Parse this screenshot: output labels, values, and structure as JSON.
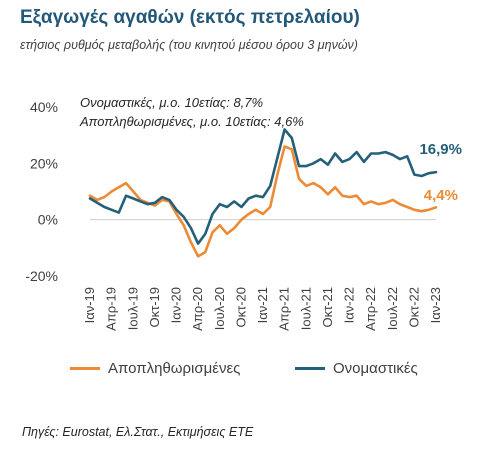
{
  "header": {
    "title": "Εξαγωγές αγαθών (εκτός πετρελαίου)",
    "subtitle": "ετήσιος ρυθμός μεταβολής (του κινητού μέσου όρου 3 μηνών)"
  },
  "source": "Πηγές: Eurostat, Ελ.Στατ., Εκτιμήσεις ΕΤΕ",
  "colors": {
    "nominal": "#24607a",
    "real": "#ee8a33",
    "axis": "#d0d0d0",
    "text": "#404040"
  },
  "chart_data": {
    "type": "line",
    "ylim": [
      -20,
      40
    ],
    "yticks": [
      -20,
      0,
      20,
      40
    ],
    "ytick_labels": [
      "-20%",
      "0%",
      "20%",
      "40%"
    ],
    "xlim": [
      "2019-01",
      "2023-01"
    ],
    "xtick_labels": [
      "Ιαν-19",
      "Απρ-19",
      "Ιουλ-19",
      "Οκτ-19",
      "Ιαν-20",
      "Απρ-20",
      "Ιουλ-20",
      "Οκτ-20",
      "Ιαν-21",
      "Απρ-21",
      "Ιουλ-21",
      "Οκτ-21",
      "Ιαν-22",
      "Απρ-22",
      "Ιουλ-22",
      "Οκτ-22",
      "Ιαν-23"
    ],
    "annotations": [
      "Ονομαστικές, μ.ο. 10ετίας: 8,7%",
      "Αποπληθωρισμένες, μ.ο. 10ετίας: 4,6%"
    ],
    "series": [
      {
        "name": "Ονομαστικές",
        "end_label": "16,9%",
        "points": [
          [
            "2019-01",
            7.5
          ],
          [
            "2019-02",
            6.0
          ],
          [
            "2019-03",
            4.5
          ],
          [
            "2019-04",
            3.5
          ],
          [
            "2019-05",
            2.5
          ],
          [
            "2019-06",
            8.5
          ],
          [
            "2019-07",
            7.5
          ],
          [
            "2019-08",
            6.5
          ],
          [
            "2019-09",
            5.5
          ],
          [
            "2019-10",
            6.0
          ],
          [
            "2019-11",
            8.0
          ],
          [
            "2019-12",
            7.0
          ],
          [
            "2020-01",
            3.5
          ],
          [
            "2020-02",
            1.0
          ],
          [
            "2020-03",
            -3.0
          ],
          [
            "2020-04",
            -8.5
          ],
          [
            "2020-05",
            -5.0
          ],
          [
            "2020-06",
            2.0
          ],
          [
            "2020-07",
            5.5
          ],
          [
            "2020-08",
            4.5
          ],
          [
            "2020-09",
            6.5
          ],
          [
            "2020-10",
            4.5
          ],
          [
            "2020-11",
            7.5
          ],
          [
            "2020-12",
            8.5
          ],
          [
            "2021-01",
            8.0
          ],
          [
            "2021-02",
            12.0
          ],
          [
            "2021-03",
            22.0
          ],
          [
            "2021-04",
            32.0
          ],
          [
            "2021-05",
            29.0
          ],
          [
            "2021-06",
            19.0
          ],
          [
            "2021-07",
            19.0
          ],
          [
            "2021-08",
            20.0
          ],
          [
            "2021-09",
            21.5
          ],
          [
            "2021-10",
            19.5
          ],
          [
            "2021-11",
            23.5
          ],
          [
            "2021-12",
            20.5
          ],
          [
            "2022-01",
            21.5
          ],
          [
            "2022-02",
            24.0
          ],
          [
            "2022-03",
            20.5
          ],
          [
            "2022-04",
            23.5
          ],
          [
            "2022-05",
            23.5
          ],
          [
            "2022-06",
            24.0
          ],
          [
            "2022-07",
            23.0
          ],
          [
            "2022-08",
            21.5
          ],
          [
            "2022-09",
            22.5
          ],
          [
            "2022-10",
            16.0
          ],
          [
            "2022-11",
            15.5
          ],
          [
            "2022-12",
            16.5
          ],
          [
            "2023-01",
            16.9
          ]
        ]
      },
      {
        "name": "Αποπληθωρισμένες",
        "end_label": "4,4%",
        "points": [
          [
            "2019-01",
            8.5
          ],
          [
            "2019-02",
            7.0
          ],
          [
            "2019-03",
            8.0
          ],
          [
            "2019-04",
            10.0
          ],
          [
            "2019-05",
            11.5
          ],
          [
            "2019-06",
            13.0
          ],
          [
            "2019-07",
            10.0
          ],
          [
            "2019-08",
            7.0
          ],
          [
            "2019-09",
            6.0
          ],
          [
            "2019-10",
            5.0
          ],
          [
            "2019-11",
            7.0
          ],
          [
            "2019-12",
            6.5
          ],
          [
            "2020-01",
            2.0
          ],
          [
            "2020-02",
            -2.0
          ],
          [
            "2020-03",
            -8.0
          ],
          [
            "2020-04",
            -13.0
          ],
          [
            "2020-05",
            -11.5
          ],
          [
            "2020-06",
            -4.5
          ],
          [
            "2020-07",
            -2.0
          ],
          [
            "2020-08",
            -5.0
          ],
          [
            "2020-09",
            -3.0
          ],
          [
            "2020-10",
            0.0
          ],
          [
            "2020-11",
            2.0
          ],
          [
            "2020-12",
            3.5
          ],
          [
            "2021-01",
            2.0
          ],
          [
            "2021-02",
            4.5
          ],
          [
            "2021-03",
            16.0
          ],
          [
            "2021-04",
            26.0
          ],
          [
            "2021-05",
            25.0
          ],
          [
            "2021-06",
            14.5
          ],
          [
            "2021-07",
            12.0
          ],
          [
            "2021-08",
            13.0
          ],
          [
            "2021-09",
            11.5
          ],
          [
            "2021-10",
            9.0
          ],
          [
            "2021-11",
            11.5
          ],
          [
            "2021-12",
            8.5
          ],
          [
            "2022-01",
            8.0
          ],
          [
            "2022-02",
            8.5
          ],
          [
            "2022-03",
            5.5
          ],
          [
            "2022-04",
            6.5
          ],
          [
            "2022-05",
            5.5
          ],
          [
            "2022-06",
            6.0
          ],
          [
            "2022-07",
            7.0
          ],
          [
            "2022-08",
            5.5
          ],
          [
            "2022-09",
            4.5
          ],
          [
            "2022-10",
            3.5
          ],
          [
            "2022-11",
            3.0
          ],
          [
            "2022-12",
            3.5
          ],
          [
            "2023-01",
            4.4
          ]
        ]
      }
    ],
    "legend": {
      "placement": "bottom",
      "entries": [
        {
          "label": "Αποπληθωρισμένες",
          "series": "Αποπληθωρισμένες"
        },
        {
          "label": "Ονομαστικές",
          "series": "Ονομαστικές"
        }
      ]
    }
  }
}
